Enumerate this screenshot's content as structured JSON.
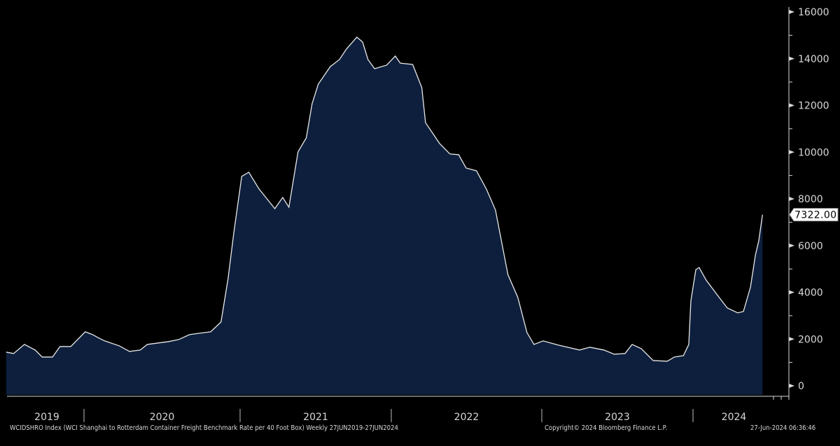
{
  "chart_data": {
    "type": "area",
    "title": "",
    "xlabel": "",
    "ylabel": "",
    "ylim": [
      0,
      16000
    ],
    "yticks": [
      "0",
      "2000",
      "4000",
      "6000",
      "8000",
      "10000",
      "12000",
      "14000",
      "16000"
    ],
    "xticks": [
      "2019",
      "2020",
      "2021",
      "2022",
      "2023",
      "2024"
    ],
    "grid": false,
    "axis_position": "right",
    "fill_color": "#0d1f3c",
    "line_color": "#e8e8e8",
    "last_value_label": "7322.00",
    "points": [
      [
        "2019-06-27",
        1440
      ],
      [
        "2019-07-15",
        1380
      ],
      [
        "2019-08-10",
        1770
      ],
      [
        "2019-09-05",
        1530
      ],
      [
        "2019-09-22",
        1230
      ],
      [
        "2019-10-17",
        1230
      ],
      [
        "2019-11-04",
        1680
      ],
      [
        "2019-11-30",
        1680
      ],
      [
        "2020-01-04",
        2310
      ],
      [
        "2020-01-22",
        2190
      ],
      [
        "2020-02-03",
        2070
      ],
      [
        "2020-02-20",
        1920
      ],
      [
        "2020-03-26",
        1710
      ],
      [
        "2020-04-20",
        1470
      ],
      [
        "2020-05-16",
        1530
      ],
      [
        "2020-06-02",
        1770
      ],
      [
        "2020-06-27",
        1830
      ],
      [
        "2020-07-23",
        1890
      ],
      [
        "2020-08-17",
        1980
      ],
      [
        "2020-09-12",
        2190
      ],
      [
        "2020-10-07",
        2250
      ],
      [
        "2020-11-02",
        2310
      ],
      [
        "2020-11-27",
        2730
      ],
      [
        "2020-12-14",
        4580
      ],
      [
        "2020-12-28",
        6560
      ],
      [
        "2021-01-16",
        8960
      ],
      [
        "2021-02-02",
        9140
      ],
      [
        "2021-02-27",
        8420
      ],
      [
        "2021-04-06",
        7580
      ],
      [
        "2021-04-25",
        8060
      ],
      [
        "2021-05-10",
        7640
      ],
      [
        "2021-06-01",
        10010
      ],
      [
        "2021-06-21",
        10610
      ],
      [
        "2021-07-05",
        12070
      ],
      [
        "2021-07-20",
        12910
      ],
      [
        "2021-08-18",
        13660
      ],
      [
        "2021-09-09",
        13960
      ],
      [
        "2021-09-26",
        14410
      ],
      [
        "2021-10-21",
        14920
      ],
      [
        "2021-11-04",
        14710
      ],
      [
        "2021-11-17",
        13960
      ],
      [
        "2021-12-03",
        13570
      ],
      [
        "2022-01-01",
        13720
      ],
      [
        "2022-01-22",
        14110
      ],
      [
        "2022-02-03",
        13810
      ],
      [
        "2022-03-05",
        13750
      ],
      [
        "2022-03-27",
        12760
      ],
      [
        "2022-04-05",
        11260
      ],
      [
        "2022-05-09",
        10370
      ],
      [
        "2022-06-03",
        9920
      ],
      [
        "2022-06-24",
        9890
      ],
      [
        "2022-07-12",
        9320
      ],
      [
        "2022-08-06",
        9200
      ],
      [
        "2022-08-30",
        8420
      ],
      [
        "2022-09-21",
        7520
      ],
      [
        "2022-10-21",
        4760
      ],
      [
        "2022-11-14",
        3780
      ],
      [
        "2022-12-06",
        2280
      ],
      [
        "2022-12-23",
        1770
      ],
      [
        "2023-01-14",
        1920
      ],
      [
        "2023-02-20",
        1740
      ],
      [
        "2023-04-12",
        1530
      ],
      [
        "2023-05-07",
        1650
      ],
      [
        "2023-06-10",
        1530
      ],
      [
        "2023-07-05",
        1350
      ],
      [
        "2023-07-31",
        1380
      ],
      [
        "2023-08-17",
        1770
      ],
      [
        "2023-09-08",
        1590
      ],
      [
        "2023-10-07",
        1080
      ],
      [
        "2023-11-10",
        1050
      ],
      [
        "2023-11-27",
        1230
      ],
      [
        "2023-12-19",
        1290
      ],
      [
        "2024-01-01",
        1770
      ],
      [
        "2024-01-06",
        3630
      ],
      [
        "2024-01-18",
        4970
      ],
      [
        "2024-01-26",
        5060
      ],
      [
        "2024-02-12",
        4520
      ],
      [
        "2024-03-08",
        3930
      ],
      [
        "2024-04-03",
        3330
      ],
      [
        "2024-04-28",
        3120
      ],
      [
        "2024-05-12",
        3180
      ],
      [
        "2024-05-29",
        4220
      ],
      [
        "2024-06-10",
        5600
      ],
      [
        "2024-06-18",
        6200
      ],
      [
        "2024-06-27",
        7322
      ]
    ]
  },
  "footer": {
    "description": "WCIDSHRO Index (WCI Shanghai to Rotterdam Container Freight Benchmark Rate per 40 Foot Box)  Weekly 27JUN2019-27JUN2024",
    "copyright": "Copyright© 2024 Bloomberg Finance L.P.",
    "timestamp": "27-Jun-2024 06:36:46"
  }
}
